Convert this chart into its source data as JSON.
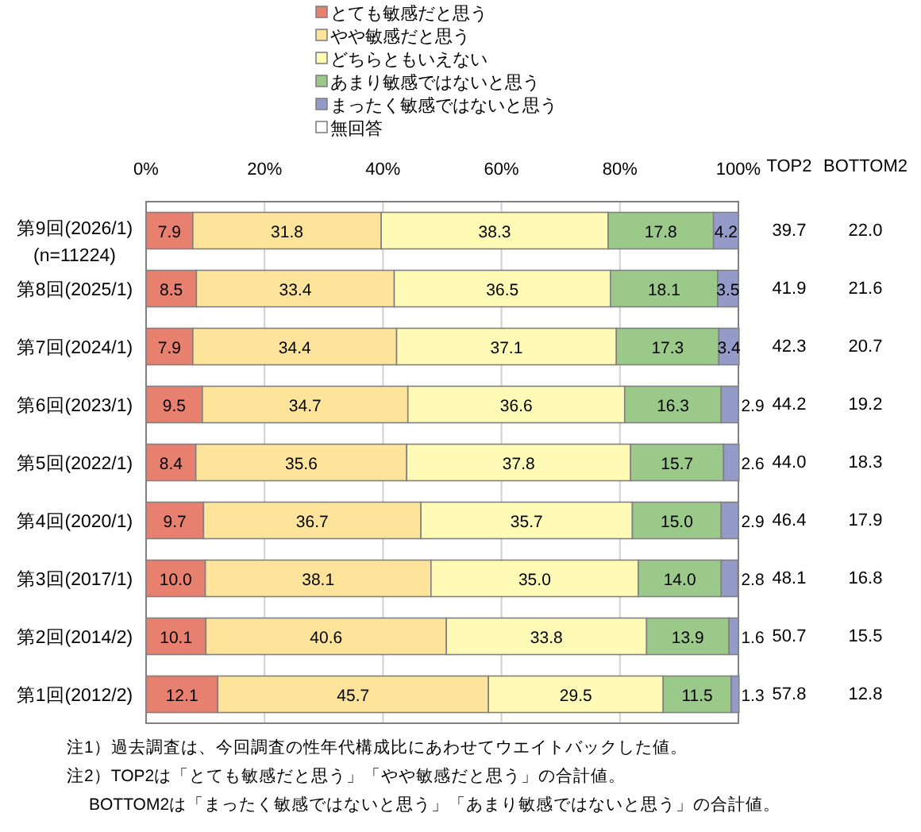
{
  "chart_data": {
    "type": "bar",
    "orientation": "horizontal",
    "stacked": true,
    "categories": [
      "第9回(2026/1)\n(n=11224)",
      "第8回(2025/1)",
      "第7回(2024/1)",
      "第6回(2023/1)",
      "第5回(2022/1)",
      "第4回(2020/1)",
      "第3回(2017/1)",
      "第2回(2014/2)",
      "第1回(2012/2)"
    ],
    "series": [
      {
        "name": "とても敏感だと思う",
        "color": "#e8806f",
        "values": [
          7.9,
          8.5,
          7.9,
          9.5,
          8.4,
          9.7,
          10.0,
          10.1,
          12.1
        ],
        "value_labels": [
          "7.9",
          "8.5",
          "7.9",
          "9.5",
          "8.4",
          "9.7",
          "10.0",
          "10.1",
          "12.1"
        ]
      },
      {
        "name": "やや敏感だと思う",
        "color": "#fde49a",
        "values": [
          31.8,
          33.4,
          34.4,
          34.7,
          35.6,
          36.7,
          38.1,
          40.6,
          45.7
        ],
        "value_labels": [
          "31.8",
          "33.4",
          "34.4",
          "34.7",
          "35.6",
          "36.7",
          "38.1",
          "40.6",
          "45.7"
        ]
      },
      {
        "name": "どちらともいえない",
        "color": "#fffab5",
        "values": [
          38.3,
          36.5,
          37.1,
          36.6,
          37.8,
          35.7,
          35.0,
          33.8,
          29.5
        ],
        "value_labels": [
          "38.3",
          "36.5",
          "37.1",
          "36.6",
          "37.8",
          "35.7",
          "35.0",
          "33.8",
          "29.5"
        ]
      },
      {
        "name": "あまり敏感ではないと思う",
        "color": "#9bc98a",
        "values": [
          17.8,
          18.1,
          17.3,
          16.3,
          15.7,
          15.0,
          14.0,
          13.9,
          11.5
        ],
        "value_labels": [
          "17.8",
          "18.1",
          "17.3",
          "16.3",
          "15.7",
          "15.0",
          "14.0",
          "13.9",
          "11.5"
        ]
      },
      {
        "name": "まったく敏感ではないと思う",
        "color": "#959bc8",
        "values": [
          4.2,
          3.5,
          3.4,
          2.9,
          2.6,
          2.9,
          2.8,
          1.6,
          1.3
        ],
        "value_labels": [
          "4.2",
          "3.5",
          "3.4",
          "2.9",
          "2.6",
          "2.9",
          "2.8",
          "1.6",
          "1.3"
        ]
      },
      {
        "name": "無回答",
        "color": "#ffffff",
        "values": [
          null,
          null,
          null,
          null,
          null,
          null,
          null,
          null,
          null
        ]
      }
    ],
    "xlim": [
      0,
      100
    ],
    "xticks": [
      {
        "value": 0,
        "label": "0%"
      },
      {
        "value": 20,
        "label": "20%"
      },
      {
        "value": 40,
        "label": "40%"
      },
      {
        "value": 60,
        "label": "60%"
      },
      {
        "value": 80,
        "label": "80%"
      },
      {
        "value": 100,
        "label": "100%"
      }
    ],
    "grid": "x",
    "legend": "top",
    "annotations": [
      "TOP2",
      "BOTTOM2",
      "39.7",
      "22.0",
      "41.9",
      "21.6",
      "42.3",
      "20.7",
      "44.2",
      "19.2",
      "44.0",
      "18.3",
      "46.4",
      "17.9",
      "48.1",
      "16.8",
      "50.7",
      "15.5",
      "57.8",
      "12.8",
      "注1）過去調査は、今回調査の性年代構成比にあわせてウエイトバックした値。",
      "注2）TOP2は「とても敏感だと思う」「やや敏感だと思う」の合計値。",
      "BOTTOM2は「まったく敏感ではないと思う」「あまり敏感ではないと思う」の合計値。"
    ]
  }
}
